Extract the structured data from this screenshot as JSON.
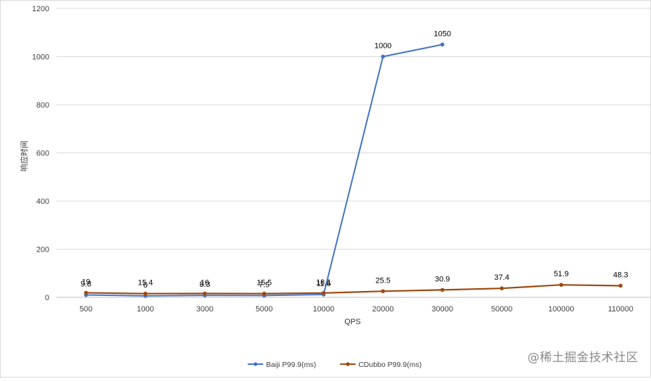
{
  "chart_data": {
    "type": "line",
    "title": "",
    "xlabel": "QPS",
    "ylabel": "响应时间",
    "categories": [
      "500",
      "1000",
      "3000",
      "5000",
      "10000",
      "20000",
      "30000",
      "50000",
      "100000",
      "110000"
    ],
    "ylim": [
      0,
      1200
    ],
    "yticks": [
      0,
      200,
      400,
      600,
      800,
      1000,
      1200
    ],
    "grid": true,
    "legend_position": "bottom",
    "series": [
      {
        "name": "Baiji P99.9(ms)",
        "color": "#4472c4",
        "values": [
          9.8,
          6,
          8.3,
          7.5,
          11.6,
          1000,
          1050,
          null,
          null,
          null
        ],
        "labels": [
          "9.8",
          "6",
          "8.3",
          "7.5",
          "11.6",
          "1000",
          "1050",
          "",
          "",
          ""
        ]
      },
      {
        "name": "CDubbo  P99.9(ms)",
        "color": "#9e480e",
        "values": [
          19,
          15.4,
          16,
          15.5,
          18.1,
          25.5,
          30.9,
          37.4,
          51.9,
          48.3
        ],
        "labels": [
          "19",
          "15.4",
          "16",
          "15.5",
          "18.1",
          "25.5",
          "30.9",
          "37.4",
          "51.9",
          "48.3"
        ]
      }
    ]
  },
  "watermark": "@稀土掘金技术社区"
}
